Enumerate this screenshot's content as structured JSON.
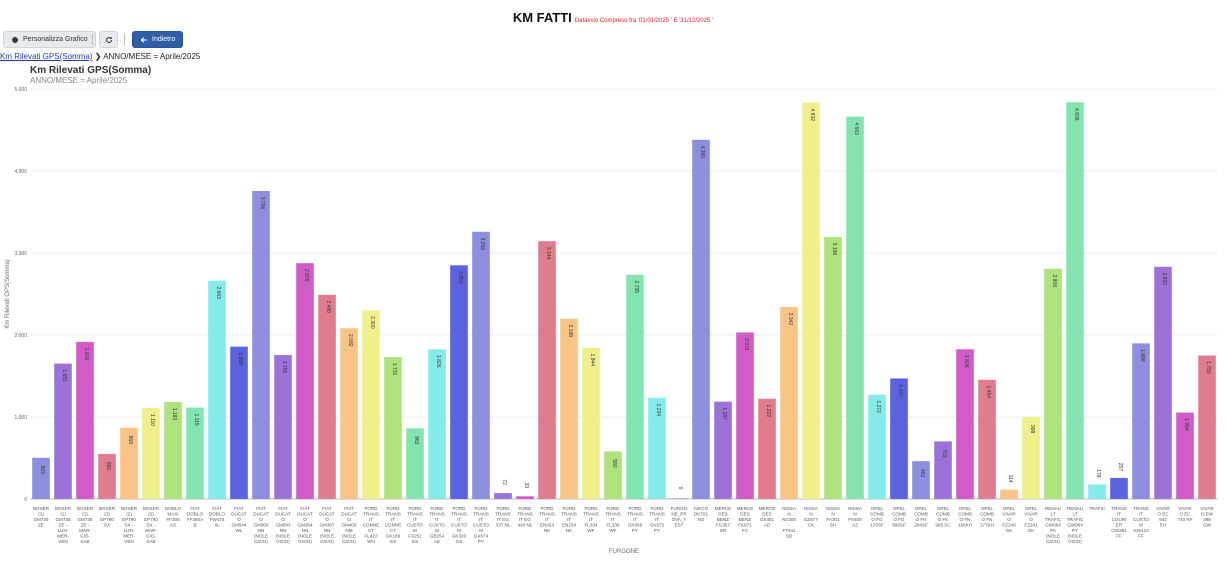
{
  "page": {
    "title": "KM FATTI",
    "subtitle": "Datavvio Compreso fra '01/01/2025 ' E '31/12/2025 '"
  },
  "toolbar": {
    "customize_label": "Personalizza Grafico",
    "back_label": "Indietro",
    "customize_icon": "gear-icon",
    "refresh_icon": "refresh-icon",
    "back_icon": "arrow-left-icon"
  },
  "breadcrumb": {
    "link": "Km Rilevati GPS(Somma)",
    "current": "ANNO/MESE = Aprile/2025"
  },
  "chart_data": {
    "type": "bar",
    "title": "Km Rilevati GPS(Somma)",
    "subtitle": "ANNO/MESE = Aprile/2025",
    "xlabel": "FURGONE",
    "ylabel": "Km Rilevati GPS(Somma)",
    "ylim": [
      0,
      5000
    ],
    "yticks": [
      "0",
      "1.000",
      "2.000",
      "3.000",
      "4.000",
      "5.000"
    ],
    "grid": true,
    "categories": [
      [
        "BOXER",
        "(1)",
        "GM735",
        "ZE"
      ],
      [
        "BOXER",
        "(1)",
        "GM735",
        "ZE -",
        "LUN-",
        "MER-",
        "VEN"
      ],
      [
        "BOXER",
        "(1)",
        "GM735",
        "ZE -",
        "MAR-",
        "GIO-",
        "SAB"
      ],
      [
        "BOXER",
        "(2)",
        "EP790",
        "SX"
      ],
      [
        "BOXER",
        "(2)",
        "EP790",
        "SX -",
        "LUN-",
        "MER-",
        "VEN"
      ],
      [
        "BOXER",
        "(2)",
        "EP790",
        "SX -",
        "MAR-",
        "GIO-",
        "SAB"
      ],
      [
        "DOBLO",
        "MAXI",
        "FF305",
        "AS"
      ],
      [
        "FIAT",
        "DOBLO",
        "FF280A",
        "B"
      ],
      [
        "FIAT",
        "DOBLO",
        "FW476",
        "XL"
      ],
      [
        "FIAT",
        "DUCAT",
        "O",
        "GM544",
        "WL"
      ],
      [
        "FIAT",
        "DUCAT",
        "O",
        "GM800",
        "NN",
        "(NOLE",
        "GGIO)"
      ],
      [
        "FIAT",
        "DUCAT",
        "O",
        "GM843",
        "NN",
        "(NOLE",
        "GGIO)"
      ],
      [
        "FIAT",
        "DUCAT",
        "O",
        "GM364",
        "NN",
        "(NOLE",
        "GGIO)"
      ],
      [
        "FIAT",
        "DUCAT",
        "O",
        "GM367",
        "NN",
        "(NOLE",
        "GGIO)"
      ],
      [
        "FIAT",
        "DUCAT",
        "O",
        "GM409",
        "NM",
        "(NOLE",
        "GGIO)"
      ],
      [
        "FORD",
        "TRANS",
        "IT",
        "CONNE",
        "CT",
        "FL422",
        "WH"
      ],
      [
        "FORD",
        "TRANS",
        "IT",
        "CONNE",
        "CT",
        "GK189",
        "GS"
      ],
      [
        "FORD",
        "TRANS",
        "IT",
        "CUSTO",
        "M",
        "FX251",
        "ES"
      ],
      [
        "FORD",
        "TRANS",
        "IT",
        "CUSTO",
        "M",
        "GB254",
        "AE"
      ],
      [
        "FORD",
        "TRANS",
        "IT",
        "CUSTO",
        "M",
        "GK320",
        "GS"
      ],
      [
        "FORD",
        "TRANS",
        "IT",
        "CUSTO",
        "M",
        "GX674",
        "PY"
      ],
      [
        "FORD",
        "TRANS",
        "IT EG",
        "337 NL"
      ],
      [
        "FORD",
        "TRANS",
        "IT EG",
        "440 NL"
      ],
      [
        "FORD",
        "TRANS",
        "IT",
        "EN054",
        "NK"
      ],
      [
        "FORD",
        "TRANS",
        "IT",
        "EN234",
        "NK"
      ],
      [
        "FORD",
        "TRANS",
        "IT",
        "FL334",
        "WF"
      ],
      [
        "FORD",
        "TRANS",
        "IT",
        "FL336",
        "WF"
      ],
      [
        "FORD",
        "TRANS",
        "IT",
        "GK669",
        "PY"
      ],
      [
        "FORD",
        "TRANS",
        "IT",
        "GK672",
        "PY"
      ],
      [
        "FURGO",
        "NE_PR",
        "OVA_T",
        "EST"
      ],
      [
        "IVECO",
        "DK701",
        "NG"
      ],
      [
        "MERCE",
        "DES",
        "BENZ",
        "FG357",
        "SR"
      ],
      [
        "MERCE",
        "DES",
        "BENZ",
        "FK871",
        "FC"
      ],
      [
        "MERCE",
        "DES",
        "GS481",
        "AD"
      ],
      [
        "NISSA",
        "N",
        "NV300",
        "-",
        "FT611",
        "SB"
      ],
      [
        "NISSA",
        "N",
        "EZ877",
        "CK"
      ],
      [
        "NISSA",
        "N",
        "FA301",
        "SH"
      ],
      [
        "NISSA",
        "N",
        "FA929",
        "AZ"
      ],
      [
        "OPEL",
        "COMB",
        "O FG",
        "170SF"
      ],
      [
        "OPEL",
        "COMB",
        "O FG",
        "666SF"
      ],
      [
        "OPEL",
        "COMB",
        "O FH",
        "204SF"
      ],
      [
        "OPEL",
        "COMB",
        "O FK",
        "905 SC"
      ],
      [
        "OPEL",
        "COMB",
        "O FN",
        "166KH"
      ],
      [
        "OPEL",
        "COMB",
        "O FN",
        "177KH"
      ],
      [
        "OPEL",
        "VIVAR",
        "O",
        "FZ240",
        "GK"
      ],
      [
        "OPEL",
        "VIVAR",
        "O",
        "FZ241",
        "GK"
      ],
      [
        "RENAU",
        "LT",
        "TRAFIC",
        "GW064",
        "PA",
        "(NOLE",
        "GGIO)"
      ],
      [
        "RENAU",
        "LT",
        "TRAFIC",
        "GW064",
        "PY",
        "(NOLE",
        "GGIO)"
      ],
      [
        "TRAFIC"
      ],
      [
        "TRANS",
        "IT",
        "COURI",
        "ER",
        "GW381",
        "FF"
      ],
      [
        "TRANS",
        "IT",
        "CUSTO",
        "M",
        "GW124",
        "FF"
      ],
      [
        "VIVAR",
        "O EC",
        "942",
        "EH"
      ],
      [
        "VIVAR",
        "O EC",
        "740 RF"
      ],
      [
        "VIVAR",
        "O EW",
        "398",
        "GW"
      ]
    ],
    "values": [
      503,
      1651,
      1916,
      550,
      868,
      1110,
      1183,
      1115,
      2663,
      1858,
      3756,
      1755,
      2876,
      2490,
      2082,
      2300,
      1731,
      862,
      1826,
      2850,
      3259,
      72,
      33,
      3144,
      2198,
      1844,
      580,
      2735,
      1234,
      0,
      4380,
      1187,
      2031,
      1222,
      2342,
      4832,
      3196,
      4663,
      1272,
      1470,
      461,
      703,
      1826,
      1454,
      114,
      998,
      2808,
      4838,
      178,
      257,
      1898,
      2832,
      1054,
      1750
    ],
    "labels": [
      "503",
      "1.651",
      "1.916",
      "550",
      "868",
      "1.110",
      "1.183",
      "1.115",
      "2.663",
      "1.858",
      "3.756",
      "1.755",
      "2.876",
      "2.490",
      "2.082",
      "2.300",
      "1.731",
      "862",
      "1.826",
      "2.850",
      "3.259",
      "72",
      "33",
      "3.144",
      "2.198",
      "1.844",
      "580",
      "2.735",
      "1.234",
      "0",
      "4.380",
      "1.187",
      "2.031",
      "1.222",
      "2.342",
      "4.832",
      "3.196",
      "4.663",
      "1.272",
      "1.470",
      "461",
      "703",
      "1.826",
      "1.454",
      "114",
      "998",
      "2.808",
      "4.838",
      "178",
      "257",
      "1.898",
      "2.832",
      "1.054",
      "1.750"
    ],
    "colors": [
      "#8b8fdd",
      "#9d72d8",
      "#cf5cc8",
      "#e07c8e",
      "#f9c486",
      "#eff08a",
      "#aee27c",
      "#84e4b0",
      "#84eaea",
      "#5a62e0",
      "#8b8fdd",
      "#9d72d8",
      "#cf5cc8",
      "#e07c8e",
      "#f9c486",
      "#eff08a",
      "#aee27c",
      "#84e4b0",
      "#84eaea",
      "#5a62e0",
      "#8b8fdd",
      "#9d72d8",
      "#cf5cc8",
      "#e07c8e",
      "#f9c486",
      "#eff08a",
      "#aee27c",
      "#84e4b0",
      "#84eaea",
      "#5a62e0",
      "#8b8fdd",
      "#9d72d8",
      "#cf5cc8",
      "#e07c8e",
      "#f9c486",
      "#eff08a",
      "#aee27c",
      "#84e4b0",
      "#84eaea",
      "#5a62e0",
      "#8b8fdd",
      "#9d72d8",
      "#cf5cc8",
      "#e07c8e",
      "#f9c486",
      "#eff08a",
      "#aee27c",
      "#84e4b0",
      "#84eaea",
      "#5a62e0",
      "#8b8fdd",
      "#9d72d8",
      "#cf5cc8",
      "#e07c8e"
    ]
  }
}
